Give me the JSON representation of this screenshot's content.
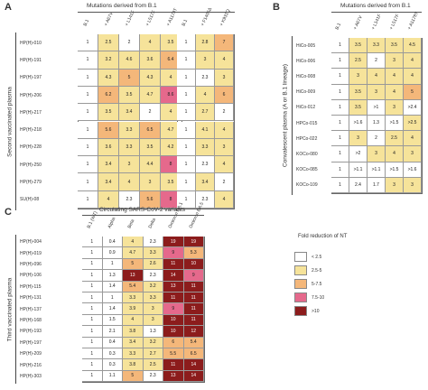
{
  "legend": {
    "title": "Fold reduction of NT",
    "items": [
      {
        "label": "< 2.5",
        "color": "#ffffff"
      },
      {
        "label": "2.5-5",
        "color": "#f6e39a"
      },
      {
        "label": "5-7.5",
        "color": "#f4b77a"
      },
      {
        "label": "7.5-10",
        "color": "#e5698c"
      },
      {
        "label": ">10",
        "color": "#8c1c1c"
      }
    ]
  },
  "chart_data": [
    {
      "type": "heatmap",
      "panel": "A",
      "ylabel": "Second vaccinated plasma",
      "rows": [
        "HP(H)-010",
        "HP(H)-191",
        "HP(H)-197",
        "HP(H)-206",
        "HP(H)-217",
        "HP(H)-218",
        "HP(H)-228",
        "HP(H)-250",
        "HP(H)-279",
        "SU(H)-08"
      ],
      "blocks": [
        {
          "header": "Mutations derived from B.1",
          "columns": [
            "B.1",
            "+ A67V",
            "+ L141F",
            "+ L517F",
            "+ A1178T"
          ],
          "values": [
            [
              "1",
              "2.5",
              "2",
              "4",
              "3.5"
            ],
            [
              "1",
              "3.2",
              "4.6",
              "3.6",
              "6.4"
            ],
            [
              "1",
              "4.3",
              "5",
              "4.3",
              "4"
            ],
            [
              "1",
              "6.2",
              "3.5",
              "4.7",
              "8.6"
            ],
            [
              "1",
              "3.5",
              "3.4",
              "2",
              "4"
            ],
            [
              "1",
              "5.6",
              "3.3",
              "6.5",
              "4.7"
            ],
            [
              "1",
              "3.6",
              "3.3",
              "3.5",
              "4.2"
            ],
            [
              "1",
              "3.4",
              "3",
              "4.4",
              "8"
            ],
            [
              "1",
              "3.4",
              "4",
              "3",
              "3.5"
            ],
            [
              "1",
              "4",
              "2.3",
              "5.6",
              "8"
            ]
          ]
        },
        {
          "header": "",
          "columns": [
            "B.1",
            "+ F1406Δ",
            "+ K931Q"
          ],
          "values": [
            [
              "1",
              "2.8",
              "7"
            ],
            [
              "1",
              "3",
              "4"
            ],
            [
              "1",
              "2.3",
              "3"
            ],
            [
              "1",
              "4",
              "6"
            ],
            [
              "1",
              "2.7",
              "2"
            ],
            [
              "1",
              "4.1",
              "4"
            ],
            [
              "1",
              "3.3",
              "3"
            ],
            [
              "1",
              "2.3",
              "4"
            ],
            [
              "1",
              "3.4",
              "2"
            ],
            [
              "1",
              "2.3",
              "4"
            ]
          ]
        }
      ]
    },
    {
      "type": "heatmap",
      "panel": "B",
      "ylabel": "Convalescent plasma (A or B.1 lineage)",
      "header": "Mutations derived from B.1",
      "rows": [
        "HiCo-005",
        "HiCo-006",
        "HiCo-008",
        "HiCo-009",
        "HiCo-012",
        "HPCo-015",
        "HPCo-022",
        "KOCo-080",
        "KOCo-085",
        "KOCo-109"
      ],
      "columns": [
        "B.1",
        "+ A67V",
        "+ L141F",
        "+ L517F",
        "+ A1178T"
      ],
      "values": [
        [
          "1",
          "3.5",
          "3.3",
          "3.5",
          "4.5"
        ],
        [
          "1",
          "2.5",
          "2",
          "3",
          "4"
        ],
        [
          "1",
          "3",
          "4",
          "4",
          "4"
        ],
        [
          "1",
          "3.5",
          "3",
          "4",
          "5"
        ],
        [
          "1",
          "3.5",
          ">1",
          "3",
          ">2.4"
        ],
        [
          "1",
          ">1.6",
          "1.3",
          ">1.5",
          ">2.5"
        ],
        [
          "1",
          "3",
          "2",
          "2.5",
          "4"
        ],
        [
          "1",
          ">2",
          "3",
          "4",
          "3"
        ],
        [
          "1",
          ">1.1",
          ">1.1",
          ">1.5",
          ">1.6"
        ],
        [
          "1",
          "2.4",
          "1.7",
          "3",
          "3"
        ]
      ]
    },
    {
      "type": "heatmap",
      "panel": "C",
      "ylabel": "Third vaccinated plasma",
      "header": "Circulating SARS-CoV-2 variants",
      "rows": [
        "HP(H)-004",
        "HP(H)-019",
        "HP(H)-096",
        "HP(H)-106",
        "HP(H)-115",
        "HP(H)-131",
        "HP(H)-137",
        "HP(H)-168",
        "HP(H)-193",
        "HP(H)-197",
        "HP(H)-209",
        "HP(H)-216",
        "HP(H)-303"
      ],
      "columns": [
        "B.1 (WT)",
        "Alpha",
        "Beta",
        "Delta",
        "Omicron BA.1",
        "Omicron BA.5"
      ],
      "values": [
        [
          "1",
          "0.4",
          "4",
          "2.3",
          "19",
          "19"
        ],
        [
          "1",
          "0.9",
          "4.7",
          "3.3",
          "9",
          "5.3"
        ],
        [
          "1",
          "1",
          "5",
          "2.6",
          "11",
          "10"
        ],
        [
          "1",
          "1.3",
          "13",
          "2.3",
          "14",
          "9"
        ],
        [
          "1",
          "1.4",
          "5.4",
          "3.2",
          "13",
          "11"
        ],
        [
          "1",
          "1",
          "3.3",
          "3.3",
          "11",
          "11"
        ],
        [
          "1",
          "1.4",
          "3.9",
          "3",
          "9",
          "11"
        ],
        [
          "1",
          "1.5",
          "4",
          "3",
          "10",
          "11"
        ],
        [
          "1",
          "2.1",
          "3.8",
          "1.3",
          "10",
          "12"
        ],
        [
          "1",
          "0.4",
          "3.4",
          "3.2",
          "6",
          "5.4"
        ],
        [
          "1",
          "0.3",
          "3.3",
          "2.7",
          "5.5",
          "6.5"
        ],
        [
          "1",
          "0.3",
          "3.8",
          "2.5",
          "11",
          "14"
        ],
        [
          "1",
          "1.1",
          "5",
          "2.3",
          "13",
          "14"
        ]
      ]
    }
  ]
}
